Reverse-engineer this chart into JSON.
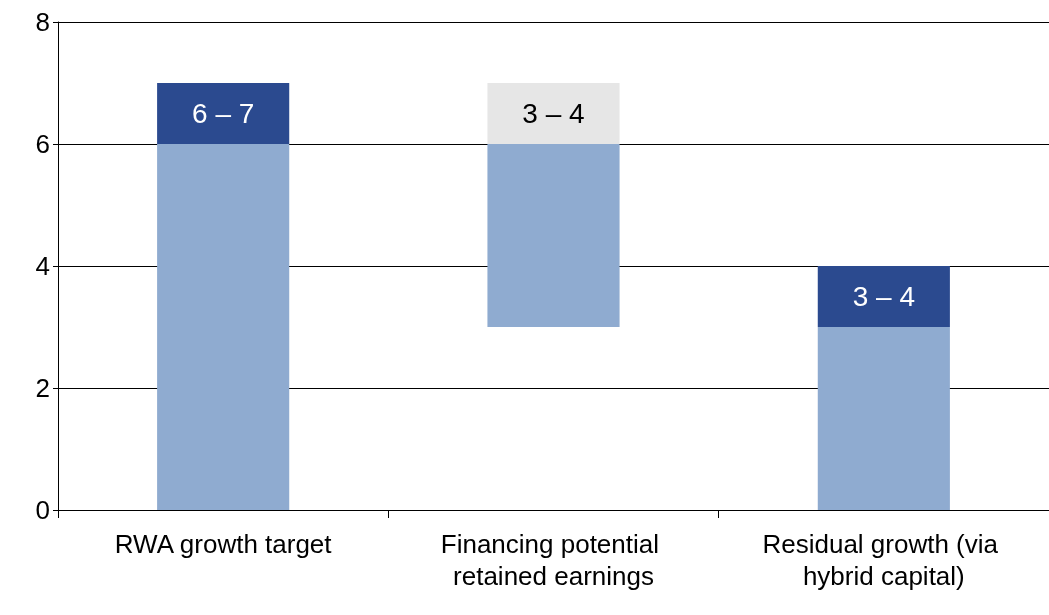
{
  "chart_data": {
    "type": "bar",
    "categories": [
      "RWA growth target",
      "Financing potential retained earnings",
      "Residual growth (via hybrid capital)"
    ],
    "series": [
      {
        "color": "#8fabd0",
        "base": [
          0,
          3,
          0
        ],
        "values": [
          6,
          3,
          3
        ]
      },
      {
        "colors": [
          "#2b4a8f",
          "#e6e6e6",
          "#2b4a8f"
        ],
        "base": [
          6,
          6,
          3
        ],
        "values": [
          1,
          1,
          1
        ]
      }
    ],
    "annotations": [
      "6 – 7",
      "3 – 4",
      "3 – 4"
    ],
    "ylim": [
      0,
      8
    ],
    "yticks": [
      0,
      2,
      4,
      6,
      8
    ],
    "grid": "y"
  }
}
